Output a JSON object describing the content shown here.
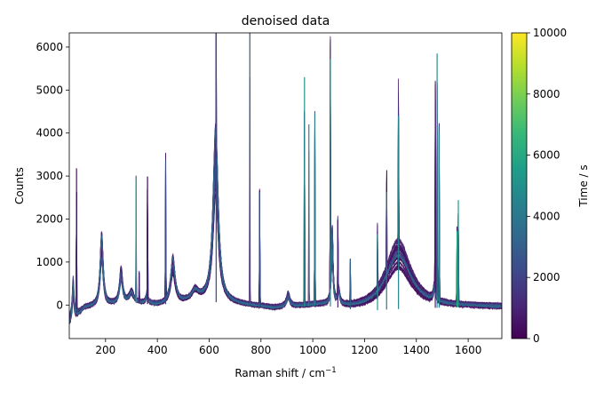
{
  "chart_data": {
    "type": "line",
    "title": "denoised data",
    "xlabel": "Raman shift / cm",
    "xlabel_superscript": "−1",
    "ylabel": "Counts",
    "xlim": [
      60,
      1730
    ],
    "ylim": [
      -780,
      6330
    ],
    "xticks": [
      200,
      400,
      600,
      800,
      1000,
      1200,
      1400,
      1600
    ],
    "yticks": [
      0,
      1000,
      2000,
      3000,
      4000,
      5000,
      6000
    ],
    "grid": false,
    "colormap": "viridis",
    "colorbar": {
      "label": "Time / s",
      "range": [
        0,
        10000
      ],
      "ticks": [
        0,
        2000,
        4000,
        6000,
        8000,
        10000
      ]
    },
    "num_spectra": 40,
    "baseline": {
      "x": [
        60,
        150,
        240,
        300,
        400,
        500,
        560,
        600,
        700,
        760,
        800,
        850,
        900,
        950,
        1000,
        1050,
        1100,
        1150,
        1200,
        1250,
        1300,
        1400,
        1500,
        1600,
        1730
      ],
      "y": [
        -120,
        -30,
        20,
        60,
        0,
        60,
        120,
        80,
        20,
        -20,
        -40,
        -80,
        -60,
        -40,
        -20,
        -20,
        -60,
        -100,
        -120,
        -120,
        -100,
        -80,
        -60,
        -40,
        -40
      ]
    },
    "peaks": [
      {
        "x": 75,
        "height": 700,
        "width": 4
      },
      {
        "x": 185,
        "height": 1350,
        "width": 7
      },
      {
        "x": 260,
        "height": 650,
        "width": 7
      },
      {
        "x": 300,
        "height": 200,
        "width": 10
      },
      {
        "x": 360,
        "height": 150,
        "width": 6
      },
      {
        "x": 460,
        "height": 850,
        "width": 10
      },
      {
        "x": 545,
        "height": 200,
        "width": 14
      },
      {
        "x": 625,
        "height": 3200,
        "width": 12
      },
      {
        "x": 905,
        "height": 250,
        "width": 8
      },
      {
        "x": 1075,
        "height": 1400,
        "width": 4
      },
      {
        "x": 1100,
        "height": 300,
        "width": 5
      },
      {
        "x": 1330,
        "height": 1250,
        "width": 60
      },
      {
        "x": 1470,
        "height": 300,
        "width": 5
      }
    ],
    "spikes": [
      {
        "x": 88,
        "height": 3180
      },
      {
        "x": 318,
        "height": 2930
      },
      {
        "x": 330,
        "height": 750
      },
      {
        "x": 362,
        "height": 2990
      },
      {
        "x": 432,
        "height": 3380
      },
      {
        "x": 627,
        "height": 4350
      },
      {
        "x": 757,
        "height": 6330
      },
      {
        "x": 795,
        "height": 2630
      },
      {
        "x": 968,
        "height": 5300
      },
      {
        "x": 985,
        "height": 4200
      },
      {
        "x": 1008,
        "height": 4450
      },
      {
        "x": 1068,
        "height": 5720
      },
      {
        "x": 1097,
        "height": 1980
      },
      {
        "x": 1145,
        "height": 1080
      },
      {
        "x": 1250,
        "height": 1650
      },
      {
        "x": 1285,
        "height": 2630
      },
      {
        "x": 1331,
        "height": 4400
      },
      {
        "x": 1473,
        "height": 4740
      },
      {
        "x": 1480,
        "height": 5850
      },
      {
        "x": 1488,
        "height": 3980
      },
      {
        "x": 1557,
        "height": 1720
      },
      {
        "x": 1562,
        "height": 2440
      }
    ]
  }
}
